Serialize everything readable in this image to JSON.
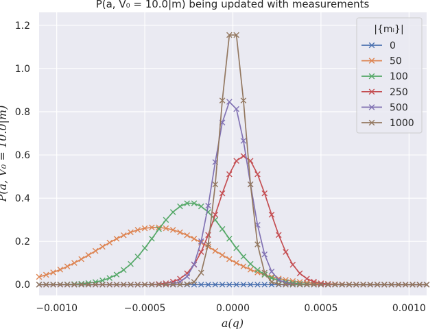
{
  "chart_data": {
    "type": "line",
    "title": "P(a, V₀ = 10.0|m) being updated with measurements",
    "xlabel": "a(q)",
    "ylabel": "P(a, V₀ = 10.0|m)",
    "xlim": [
      -0.0011,
      0.0011
    ],
    "ylim": [
      -0.05,
      1.26
    ],
    "xticks": [
      -0.001,
      -0.0005,
      0.0,
      0.0005,
      0.001
    ],
    "xtick_labels": [
      "−0.0010",
      "−0.0005",
      "0.0000",
      "0.0005",
      "0.0010"
    ],
    "yticks": [
      0.0,
      0.2,
      0.4,
      0.6,
      0.8,
      1.0,
      1.2
    ],
    "ytick_labels": [
      "0.0",
      "0.2",
      "0.4",
      "0.6",
      "0.8",
      "1.0",
      "1.2"
    ],
    "grid": true,
    "legend": {
      "title": "|{mᵢ}|",
      "placement": "top-right"
    },
    "x_min": -0.0011,
    "x_step": 4e-05,
    "x_count": 56,
    "series": [
      {
        "name": "0",
        "color": "#4c72b0",
        "mean": 0.0,
        "sd": 0.0,
        "peak": 0.0
      },
      {
        "name": "50",
        "color": "#dd8452",
        "mean": -0.00044,
        "sd": 0.00033,
        "peak": 0.265
      },
      {
        "name": "100",
        "color": "#55a868",
        "mean": -0.00024,
        "sd": 0.000205,
        "peak": 0.378
      },
      {
        "name": "250",
        "color": "#c44e52",
        "mean": 6e-05,
        "sd": 0.000145,
        "peak": 0.595
      },
      {
        "name": "500",
        "color": "#8172b3",
        "mean": -1e-05,
        "sd": 0.0001,
        "peak": 0.85
      },
      {
        "name": "1000",
        "color": "#937860",
        "mean": 0.0,
        "sd": 7.25e-05,
        "peak": 1.2
      }
    ]
  }
}
